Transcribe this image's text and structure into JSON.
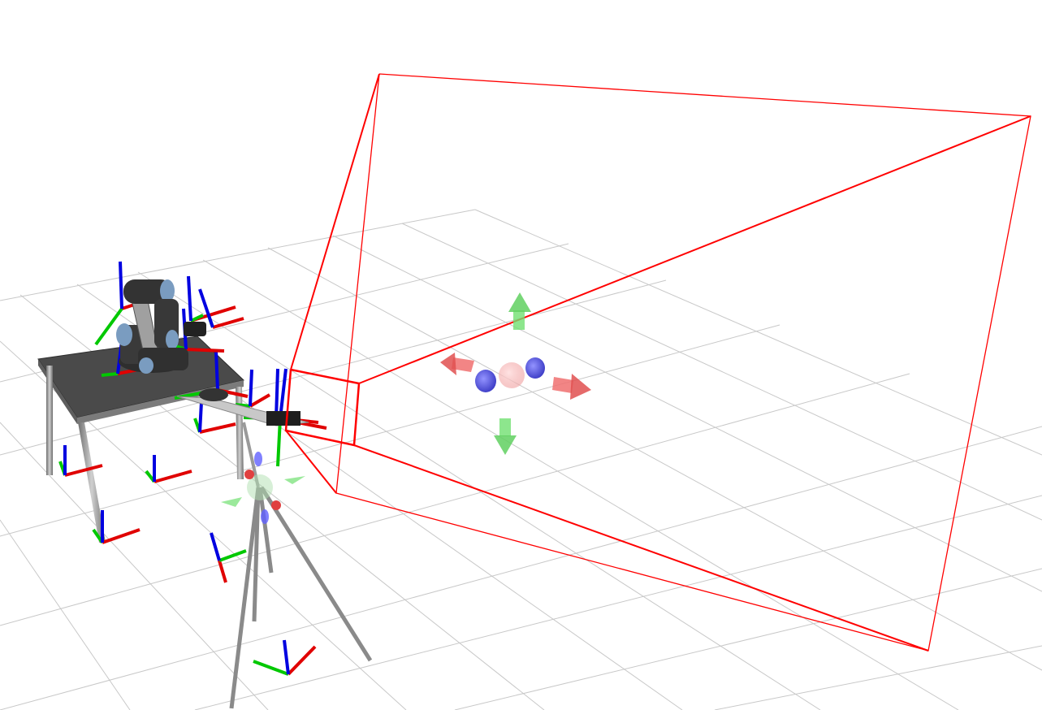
{
  "viewport": {
    "background": "#ffffff",
    "grid_color": "#c8c8c8"
  },
  "colors": {
    "axis_x": "#e00000",
    "axis_y": "#00c800",
    "axis_z": "#0000e0",
    "frustum": "#ff0000",
    "table_top": "#4a4a4a",
    "table_leg": "#a6a6a6",
    "robot_body": "#3a3a3a",
    "robot_joint_cap": "#7a9cc0",
    "tripod_leg": "#8a8a8a"
  },
  "scene_objects": [
    "robot-arm",
    "work-table",
    "camera-tripod",
    "camera-frustum",
    "interactive-marker-6dof",
    "tf-axis-frames"
  ]
}
